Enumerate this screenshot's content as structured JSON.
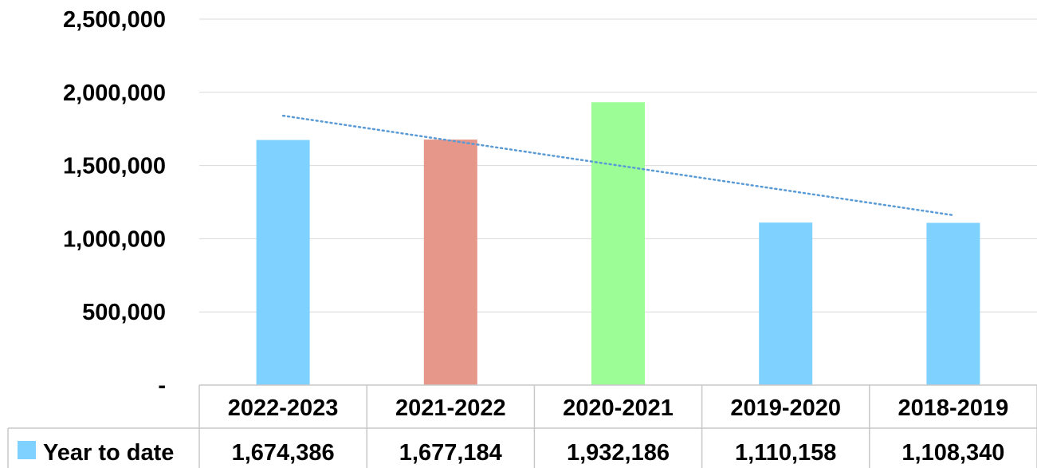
{
  "chart_data": {
    "type": "bar",
    "categories": [
      "2022-2023",
      "2021-2022",
      "2020-2021",
      "2019-2020",
      "2018-2019"
    ],
    "series": [
      {
        "name": "Year to date",
        "values": [
          1674386,
          1677184,
          1932186,
          1110158,
          1108340
        ],
        "value_labels": [
          "1,674,386",
          "1,677,184",
          "1,932,186",
          "1,110,158",
          "1,108,340"
        ],
        "colors": [
          "#7fd2ff",
          "#e6978a",
          "#9cfd97",
          "#7fd2ff",
          "#7fd2ff"
        ]
      }
    ],
    "trendline": {
      "type": "linear",
      "style": "dotted",
      "color": "#5b9bd5"
    },
    "ylim": [
      0,
      2500000
    ],
    "yticks": [
      0,
      500000,
      1000000,
      1500000,
      2000000,
      2500000
    ],
    "ytick_labels": [
      "-",
      "500,000",
      "1,000,000",
      "1,500,000",
      "2,000,000",
      "2,500,000"
    ],
    "grid": true,
    "data_table": true,
    "legend": {
      "placement": "data-table-row",
      "swatch_color": "#7fd2ff"
    }
  }
}
